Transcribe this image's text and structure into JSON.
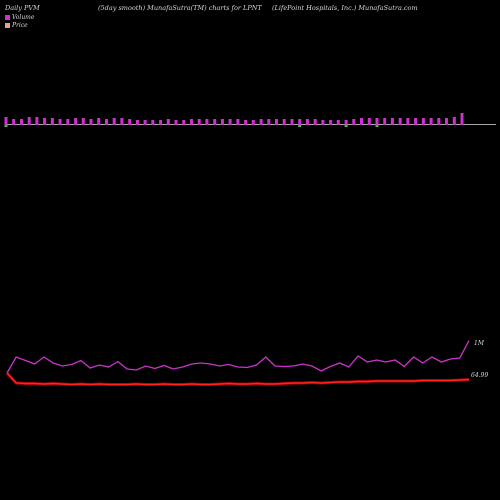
{
  "header": {
    "left": "Daily PVM",
    "middle": "(5day smooth) MunafaSutra(TM) charts for LPNT",
    "right": "(LifePoint Hospitals, Inc.) MunafaSutra.com"
  },
  "legend": {
    "volume_label": "Volume",
    "price_label": "Price",
    "volume_color": "#cc33cc",
    "price_color": "#e8a090"
  },
  "colors": {
    "background": "#000000",
    "volume_bar": "#cc33cc",
    "volume_bar_down": "#33cc33",
    "volume_line": "#cc33cc",
    "price_line": "#ff2222"
  },
  "chart_data": {
    "type": "line",
    "volume_label_text": "1M",
    "price_label_text": "64.99",
    "volume_bars": [
      8,
      6,
      6,
      8,
      8,
      7,
      7,
      6,
      6,
      7,
      7,
      6,
      7,
      6,
      7,
      7,
      6,
      5,
      5,
      5,
      5,
      6,
      5,
      5,
      6,
      6,
      6,
      6,
      6,
      6,
      6,
      5,
      5,
      6,
      6,
      6,
      6,
      6,
      6,
      6,
      6,
      5,
      5,
      5,
      5,
      6,
      7,
      7,
      7,
      7,
      7,
      7,
      7,
      7,
      7,
      7,
      7,
      7,
      8,
      12
    ],
    "volume_down_flags": [
      1,
      0,
      0,
      0,
      0,
      0,
      0,
      0,
      0,
      0,
      0,
      0,
      0,
      0,
      0,
      0,
      0,
      0,
      0,
      0,
      0,
      0,
      0,
      0,
      0,
      0,
      0,
      0,
      0,
      0,
      0,
      0,
      0,
      0,
      0,
      0,
      0,
      0,
      1,
      0,
      0,
      0,
      0,
      0,
      1,
      0,
      0,
      0,
      1,
      0,
      0,
      0,
      0,
      0,
      0,
      0,
      0,
      0,
      0,
      0
    ],
    "volume_line": [
      0.3,
      0.62,
      0.55,
      0.48,
      0.62,
      0.5,
      0.44,
      0.47,
      0.55,
      0.4,
      0.46,
      0.42,
      0.53,
      0.38,
      0.36,
      0.44,
      0.39,
      0.45,
      0.38,
      0.42,
      0.48,
      0.5,
      0.48,
      0.44,
      0.47,
      0.42,
      0.41,
      0.46,
      0.62,
      0.44,
      0.43,
      0.44,
      0.48,
      0.44,
      0.34,
      0.43,
      0.5,
      0.42,
      0.64,
      0.52,
      0.56,
      0.52,
      0.56,
      0.43,
      0.62,
      0.5,
      0.62,
      0.52,
      0.58,
      0.6,
      0.95
    ],
    "price_line": [
      0.3,
      0.1,
      0.09,
      0.09,
      0.08,
      0.09,
      0.08,
      0.07,
      0.08,
      0.07,
      0.08,
      0.07,
      0.07,
      0.07,
      0.08,
      0.07,
      0.07,
      0.08,
      0.07,
      0.07,
      0.08,
      0.07,
      0.07,
      0.08,
      0.09,
      0.08,
      0.08,
      0.09,
      0.08,
      0.08,
      0.09,
      0.1,
      0.1,
      0.11,
      0.1,
      0.11,
      0.12,
      0.12,
      0.13,
      0.13,
      0.14,
      0.14,
      0.14,
      0.14,
      0.14,
      0.15,
      0.15,
      0.15,
      0.15,
      0.16,
      0.17
    ]
  }
}
